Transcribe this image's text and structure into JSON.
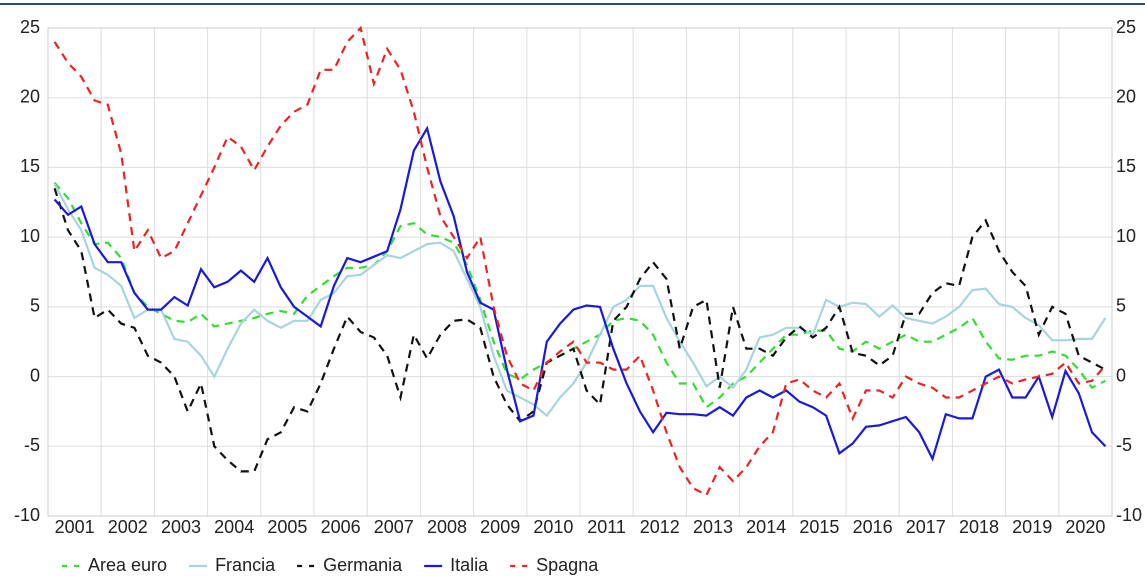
{
  "chart_data": {
    "type": "line",
    "categories": [
      null,
      "2001",
      null,
      null,
      null,
      "2002",
      null,
      null,
      null,
      "2003",
      null,
      null,
      null,
      "2004",
      null,
      null,
      null,
      "2005",
      null,
      null,
      null,
      "2006",
      null,
      null,
      null,
      "2007",
      null,
      null,
      null,
      "2008",
      null,
      null,
      null,
      "2009",
      null,
      null,
      null,
      "2010",
      null,
      null,
      null,
      "2011",
      null,
      null,
      null,
      "2012",
      null,
      null,
      null,
      "2013",
      null,
      null,
      null,
      "2014",
      null,
      null,
      null,
      "2015",
      null,
      null,
      null,
      "2016",
      null,
      null,
      null,
      "2017",
      null,
      null,
      null,
      "2018",
      null,
      null,
      null,
      "2019",
      null,
      null,
      null,
      "2020",
      null,
      null
    ],
    "series": [
      {
        "name": "Area euro",
        "color": "#33dd33",
        "dashed": true,
        "values": [
          13.9,
          12.8,
          11,
          9.5,
          9.6,
          8.5,
          6,
          5,
          4.5,
          4,
          3.9,
          4.5,
          3.6,
          3.8,
          4,
          4.2,
          4.5,
          4.7,
          4.5,
          5.8,
          6.5,
          7.2,
          7.8,
          7.8,
          8,
          9,
          10.8,
          11,
          10.2,
          10,
          9.6,
          8,
          5.5,
          2.5,
          0.2,
          -0.2,
          0.5,
          1,
          1.5,
          2,
          2.5,
          3,
          4,
          4.2,
          4,
          3,
          1,
          -0.5,
          -0.5,
          -2.2,
          -1.5,
          -0.5,
          0,
          1,
          2,
          3,
          3,
          3.3,
          3.3,
          2,
          1.8,
          2.5,
          2,
          2.5,
          3,
          2.5,
          2.5,
          3,
          3.5,
          4.2,
          2.5,
          1.3,
          1.2,
          1.5,
          1.5,
          1.8,
          1.5,
          0.5,
          -0.8,
          -0.3
        ]
      },
      {
        "name": "Francia",
        "color": "#a8d4e0",
        "dashed": false,
        "values": [
          13.8,
          12,
          10.5,
          7.8,
          7.3,
          6.5,
          4.2,
          4.8,
          4.8,
          2.7,
          2.5,
          1.5,
          0,
          2,
          3.8,
          4.8,
          4,
          3.5,
          4,
          4,
          5.5,
          6,
          7.2,
          7.3,
          8,
          8.7,
          8.5,
          9,
          9.5,
          9.6,
          9,
          7,
          5,
          1.5,
          -1,
          -1.5,
          -2,
          -2.8,
          -1.5,
          -0.5,
          1,
          3,
          5,
          5.5,
          6.5,
          6.5,
          4.2,
          2.5,
          1,
          -0.7,
          0,
          -0.8,
          0.5,
          2.8,
          3,
          3.5,
          3.5,
          3,
          5.5,
          5,
          5.3,
          5.2,
          4.3,
          5.1,
          4.2,
          4,
          3.8,
          4.3,
          5,
          6.2,
          6.3,
          5.2,
          5,
          4.2,
          3.7,
          2.6,
          2.6,
          2.7,
          2.7,
          4.2
        ]
      },
      {
        "name": "Germania",
        "color": "#111111",
        "dashed": true,
        "values": [
          13.5,
          10.5,
          9,
          4.2,
          4.8,
          3.8,
          3.5,
          1.5,
          1,
          0,
          -2.5,
          -0.5,
          -5,
          -6,
          -6.8,
          -6.8,
          -4.5,
          -4,
          -2.2,
          -2.5,
          -0.5,
          2,
          4.3,
          3.2,
          2.8,
          1.5,
          -1.5,
          3,
          1.3,
          3,
          4,
          4.1,
          3.5,
          0,
          -2,
          -3.2,
          -2.5,
          1,
          1.5,
          2,
          -1,
          -2,
          4,
          5,
          7,
          8.2,
          7,
          2,
          5,
          5.5,
          -0.8,
          5,
          2,
          2,
          1.5,
          2.8,
          3.6,
          2.8,
          3.5,
          5,
          1.7,
          1.5,
          0.8,
          1.5,
          4.5,
          4.5,
          6,
          6.7,
          6.5,
          10,
          11.2,
          9,
          7.5,
          6.5,
          3,
          5,
          4.5,
          1.5,
          1,
          0.5
        ]
      },
      {
        "name": "Italia",
        "color": "#1a1adb",
        "dashed": false,
        "values": [
          12.7,
          11.6,
          12.2,
          9.5,
          8.2,
          8.2,
          6,
          4.8,
          4.8,
          5.7,
          5.1,
          7.7,
          6.4,
          6.8,
          7.6,
          6.8,
          8.5,
          6.4,
          5,
          4.3,
          3.6,
          6.5,
          8.5,
          8.2,
          8.6,
          9,
          12,
          16.2,
          17.8,
          14,
          11.5,
          7.5,
          5.3,
          4.8,
          0.5,
          -3.2,
          -2.8,
          2.5,
          3.8,
          4.8,
          5.1,
          5,
          2,
          -0.5,
          -2.5,
          -4,
          -2.6,
          -2.7,
          -2.7,
          -2.8,
          -2.2,
          -2.8,
          -1.5,
          -1,
          -1.5,
          -1,
          -1.8,
          -2.2,
          -2.8,
          -5.5,
          -4.8,
          -3.6,
          -3.5,
          -3.2,
          -2.9,
          -4,
          -5.9,
          -2.7,
          -3,
          -3,
          0,
          0.5,
          -1.5,
          -1.5,
          0,
          -2.9,
          0.4,
          -1.2,
          -4,
          -5
        ]
      },
      {
        "name": "Spagna",
        "color": "#ee2222",
        "dashed": true,
        "values": [
          24,
          22.5,
          21.5,
          19.8,
          19.5,
          16,
          9,
          10.5,
          8.5,
          9,
          11,
          13,
          15,
          17.2,
          16.5,
          14.8,
          16.5,
          18,
          19,
          19.5,
          22,
          22,
          24,
          25,
          21,
          23.5,
          22,
          19,
          15,
          11.5,
          10,
          8.5,
          10,
          5,
          1.5,
          -0.5,
          -1,
          1,
          1.8,
          2.5,
          1,
          1,
          0.5,
          0.5,
          1.5,
          -1,
          -4,
          -6.5,
          -8,
          -8.5,
          -6.5,
          -7.5,
          -6.5,
          -5,
          -4,
          -0.5,
          -0.2,
          -1,
          -1.5,
          -0.5,
          -3,
          -1,
          -1,
          -1.5,
          0,
          -0.5,
          -0.8,
          -1.5,
          -1.5,
          -1,
          -0.5,
          0,
          -0.5,
          -0.2,
          0,
          0.2,
          1,
          -0.5,
          -0.3,
          0.8
        ]
      }
    ],
    "ylim": [
      -10,
      25
    ],
    "yticks": [
      -10,
      -5,
      0,
      5,
      10,
      15,
      20,
      25
    ],
    "grid": true
  }
}
